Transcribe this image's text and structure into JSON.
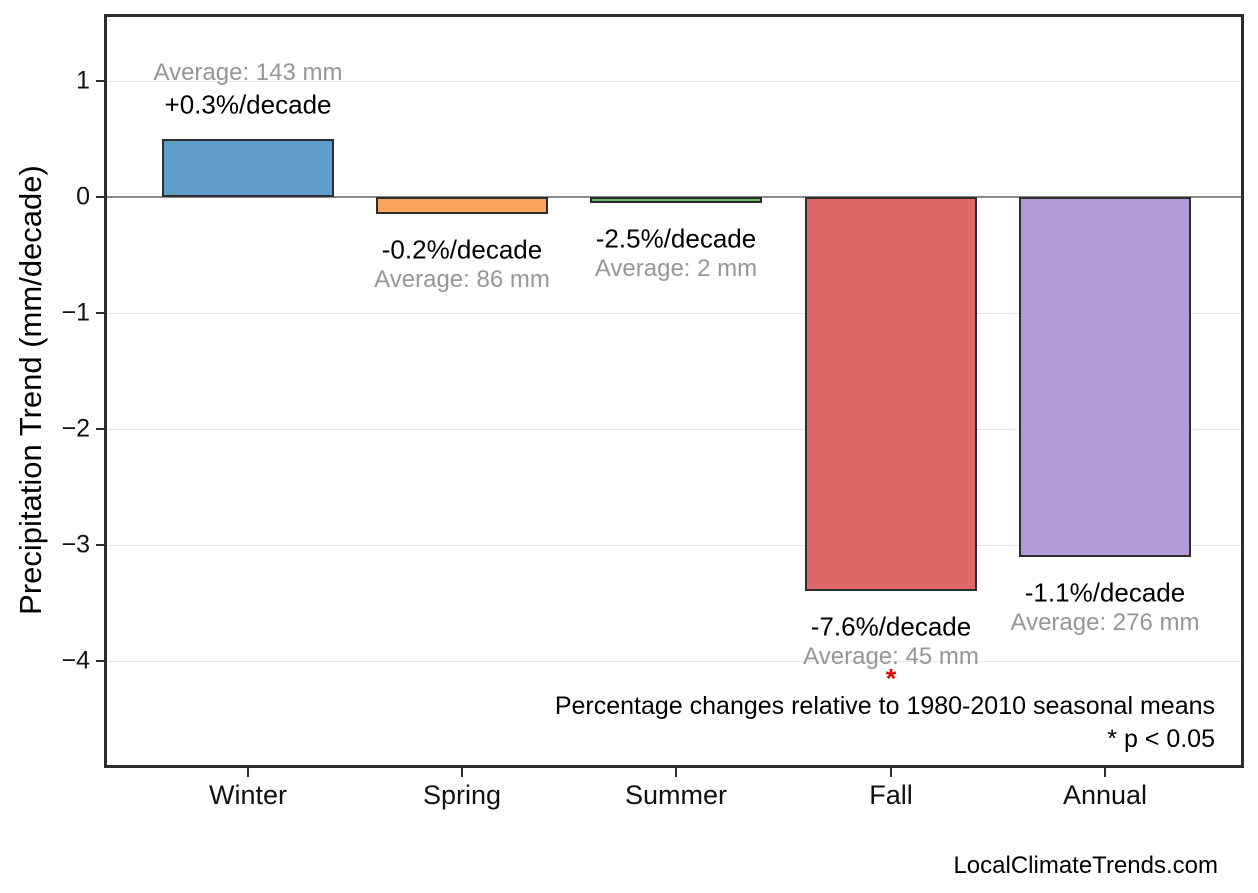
{
  "page": {
    "watermark": "LocalClimateTrends.com"
  },
  "chart_data": {
    "type": "bar",
    "title": "",
    "xlabel": "",
    "ylabel": "Precipitation Trend (mm/decade)",
    "ylim": [
      -4.9,
      1.55
    ],
    "yticks": [
      1,
      0,
      -1,
      -2,
      -3,
      -4
    ],
    "ytick_labels": [
      "1",
      "0",
      "−1",
      "−2",
      "−3",
      "−4"
    ],
    "grid": "horizontal light gray gridlines at each tick; darker gray zero line",
    "legend": "none",
    "categories": [
      "Winter",
      "Spring",
      "Summer",
      "Fall",
      "Annual"
    ],
    "series": [
      {
        "name": "Precipitation trend (mm/decade)",
        "values": [
          0.5,
          -0.15,
          -0.05,
          -3.4,
          -3.1
        ]
      }
    ],
    "bars": [
      {
        "category": "Winter",
        "value_mm_per_decade": 0.5,
        "pct_label": "+0.3%/decade",
        "avg_label": "Average: 143 mm",
        "color": "#5E9DC8",
        "significant": false
      },
      {
        "category": "Spring",
        "value_mm_per_decade": -0.15,
        "pct_label": "-0.2%/decade",
        "avg_label": "Average: 86 mm",
        "color": "#FBA45C",
        "significant": false
      },
      {
        "category": "Summer",
        "value_mm_per_decade": -0.05,
        "pct_label": "-2.5%/decade",
        "avg_label": "Average: 2 mm",
        "color": "#67BD67",
        "significant": false
      },
      {
        "category": "Fall",
        "value_mm_per_decade": -3.4,
        "pct_label": "-7.6%/decade",
        "avg_label": "Average: 45 mm",
        "color": "#E06767",
        "significant": true
      },
      {
        "category": "Annual",
        "value_mm_per_decade": -3.1,
        "pct_label": "-1.1%/decade",
        "avg_label": "Average: 276 mm",
        "color": "#B399D8",
        "significant": false
      }
    ],
    "significance_marker": "*",
    "significance_color": "#EE0000",
    "footnote_line1": "Percentage changes relative to 1980-2010 seasonal means",
    "footnote_line2": "* p < 0.05",
    "colors": {
      "frame": "#2d2d2d",
      "gridline": "#e8e8e8",
      "zero_line": "#8a8a8a",
      "average_text": "#969696",
      "label_text": "#000000"
    }
  }
}
